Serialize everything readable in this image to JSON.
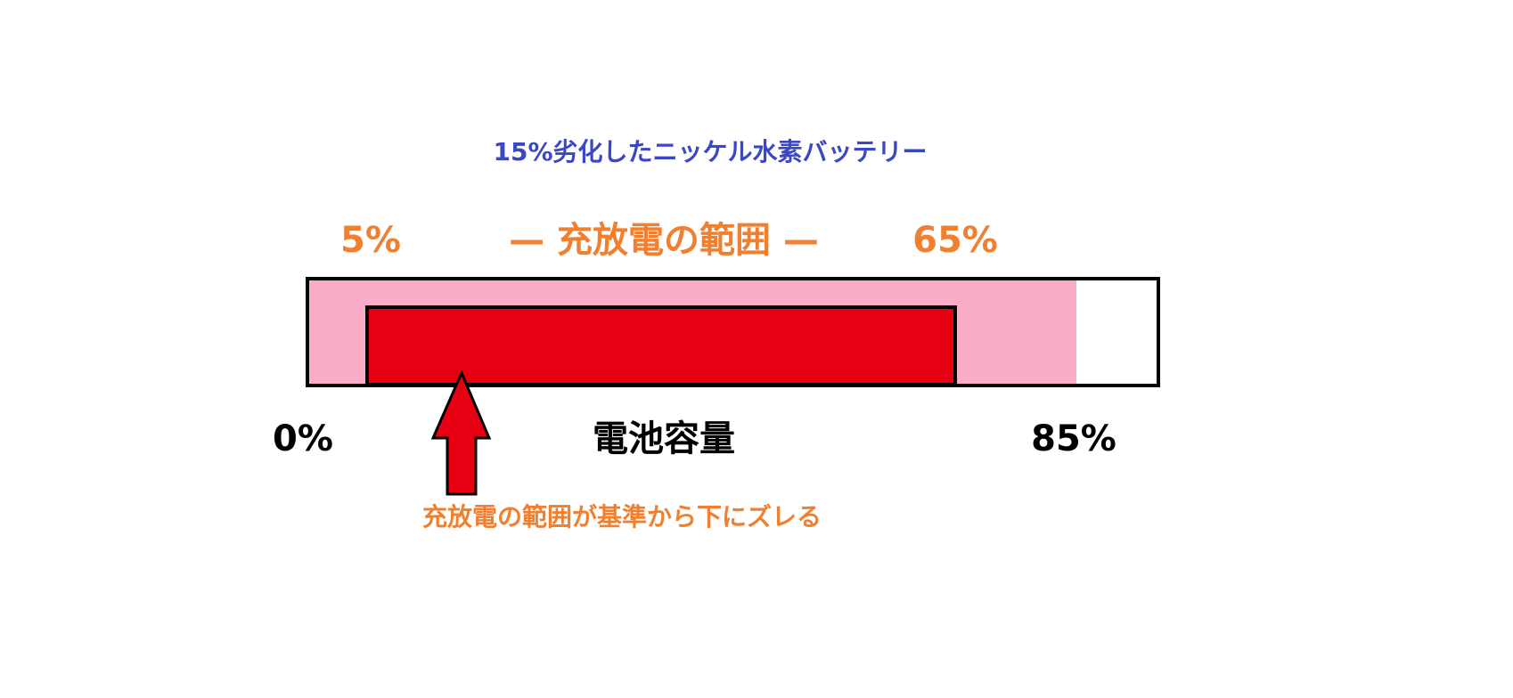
{
  "title": "15%劣化したニッケル水素バッテリー",
  "range_label": {
    "low": "5%",
    "label": "— 充放電の範囲 —",
    "high": "65%"
  },
  "capacity_label": {
    "low": "0%",
    "label": "電池容量",
    "high": "85%"
  },
  "annotation": "充放電の範囲が基準から下にズレる"
}
